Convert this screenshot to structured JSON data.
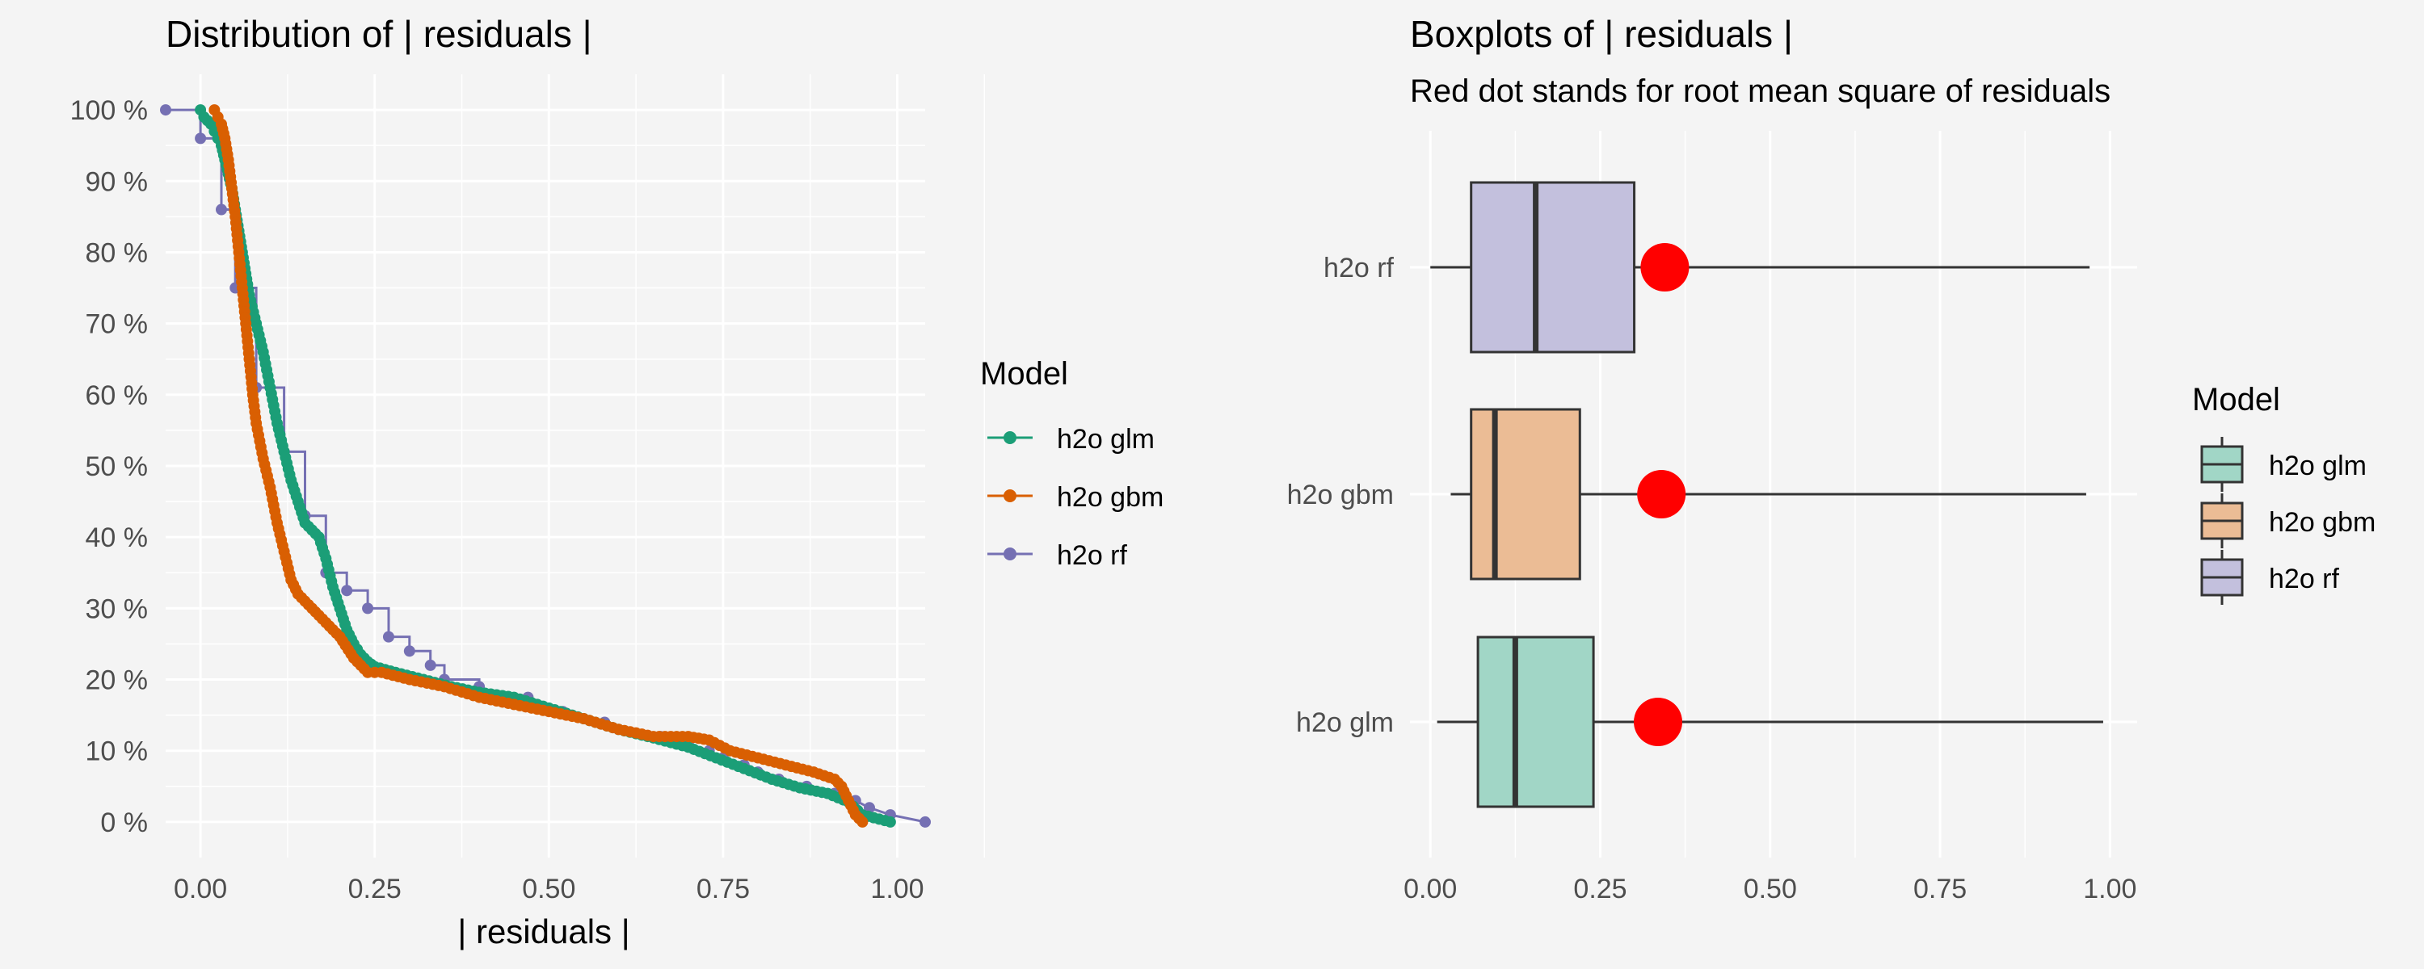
{
  "chart_data": [
    {
      "type": "line",
      "title": "Distribution of | residuals |",
      "xlabel": "| residuals |",
      "ylabel": "",
      "xlim": [
        -0.05,
        1.04
      ],
      "ylim": [
        -0.05,
        1.05
      ],
      "x_ticks": [
        "0.00",
        "0.25",
        "0.50",
        "0.75",
        "1.00"
      ],
      "y_ticks": [
        "0 %",
        "10 %",
        "20 %",
        "30 %",
        "40 %",
        "50 %",
        "60 %",
        "70 %",
        "80 %",
        "90 %",
        "100 %"
      ],
      "grid": true,
      "legend_title": "Model",
      "legend_position": "right",
      "series": [
        {
          "name": "h2o glm",
          "color": "#1b9e77",
          "points": [
            [
              0.0,
              1.0
            ],
            [
              0.005,
              0.99
            ],
            [
              0.01,
              0.985
            ],
            [
              0.015,
              0.98
            ],
            [
              0.02,
              0.97
            ],
            [
              0.025,
              0.96
            ],
            [
              0.03,
              0.95
            ],
            [
              0.035,
              0.93
            ],
            [
              0.04,
              0.91
            ],
            [
              0.045,
              0.89
            ],
            [
              0.05,
              0.86
            ],
            [
              0.055,
              0.83
            ],
            [
              0.06,
              0.8
            ],
            [
              0.065,
              0.77
            ],
            [
              0.07,
              0.74
            ],
            [
              0.08,
              0.7
            ],
            [
              0.09,
              0.66
            ],
            [
              0.1,
              0.61
            ],
            [
              0.11,
              0.56
            ],
            [
              0.12,
              0.52
            ],
            [
              0.13,
              0.48
            ],
            [
              0.14,
              0.45
            ],
            [
              0.15,
              0.42
            ],
            [
              0.16,
              0.41
            ],
            [
              0.17,
              0.4
            ],
            [
              0.18,
              0.37
            ],
            [
              0.19,
              0.33
            ],
            [
              0.2,
              0.3
            ],
            [
              0.21,
              0.27
            ],
            [
              0.22,
              0.25
            ],
            [
              0.23,
              0.235
            ],
            [
              0.24,
              0.225
            ],
            [
              0.25,
              0.218
            ],
            [
              0.28,
              0.21
            ],
            [
              0.32,
              0.2
            ],
            [
              0.36,
              0.19
            ],
            [
              0.4,
              0.182
            ],
            [
              0.45,
              0.175
            ],
            [
              0.5,
              0.16
            ],
            [
              0.55,
              0.145
            ],
            [
              0.6,
              0.13
            ],
            [
              0.65,
              0.118
            ],
            [
              0.7,
              0.105
            ],
            [
              0.74,
              0.09
            ],
            [
              0.78,
              0.075
            ],
            [
              0.82,
              0.06
            ],
            [
              0.86,
              0.048
            ],
            [
              0.9,
              0.04
            ],
            [
              0.93,
              0.028
            ],
            [
              0.95,
              0.01
            ],
            [
              0.99,
              0.0
            ]
          ]
        },
        {
          "name": "h2o gbm",
          "color": "#d95f02",
          "points": [
            [
              0.02,
              1.0
            ],
            [
              0.025,
              0.99
            ],
            [
              0.03,
              0.98
            ],
            [
              0.035,
              0.96
            ],
            [
              0.04,
              0.93
            ],
            [
              0.045,
              0.89
            ],
            [
              0.05,
              0.85
            ],
            [
              0.055,
              0.8
            ],
            [
              0.06,
              0.75
            ],
            [
              0.065,
              0.7
            ],
            [
              0.07,
              0.65
            ],
            [
              0.075,
              0.6
            ],
            [
              0.08,
              0.56
            ],
            [
              0.09,
              0.51
            ],
            [
              0.1,
              0.47
            ],
            [
              0.11,
              0.42
            ],
            [
              0.12,
              0.38
            ],
            [
              0.13,
              0.34
            ],
            [
              0.14,
              0.32
            ],
            [
              0.16,
              0.3
            ],
            [
              0.18,
              0.28
            ],
            [
              0.2,
              0.26
            ],
            [
              0.22,
              0.23
            ],
            [
              0.24,
              0.21
            ],
            [
              0.26,
              0.21
            ],
            [
              0.3,
              0.2
            ],
            [
              0.35,
              0.19
            ],
            [
              0.4,
              0.175
            ],
            [
              0.45,
              0.165
            ],
            [
              0.5,
              0.155
            ],
            [
              0.55,
              0.145
            ],
            [
              0.6,
              0.13
            ],
            [
              0.65,
              0.12
            ],
            [
              0.7,
              0.12
            ],
            [
              0.73,
              0.115
            ],
            [
              0.76,
              0.1
            ],
            [
              0.8,
              0.09
            ],
            [
              0.84,
              0.08
            ],
            [
              0.88,
              0.07
            ],
            [
              0.91,
              0.06
            ],
            [
              0.92,
              0.05
            ],
            [
              0.93,
              0.03
            ],
            [
              0.94,
              0.01
            ],
            [
              0.95,
              0.0
            ]
          ]
        },
        {
          "name": "h2o rf",
          "color": "#7570b3",
          "points": [
            [
              -0.05,
              1.0
            ],
            [
              0.0,
              1.0
            ],
            [
              0.0,
              0.96
            ],
            [
              0.03,
              0.96
            ],
            [
              0.03,
              0.86
            ],
            [
              0.05,
              0.86
            ],
            [
              0.05,
              0.75
            ],
            [
              0.08,
              0.75
            ],
            [
              0.08,
              0.61
            ],
            [
              0.12,
              0.61
            ],
            [
              0.12,
              0.52
            ],
            [
              0.15,
              0.52
            ],
            [
              0.15,
              0.43
            ],
            [
              0.18,
              0.43
            ],
            [
              0.18,
              0.35
            ],
            [
              0.21,
              0.35
            ],
            [
              0.21,
              0.325
            ],
            [
              0.24,
              0.325
            ],
            [
              0.24,
              0.3
            ],
            [
              0.27,
              0.3
            ],
            [
              0.27,
              0.26
            ],
            [
              0.3,
              0.26
            ],
            [
              0.3,
              0.24
            ],
            [
              0.33,
              0.24
            ],
            [
              0.33,
              0.22
            ],
            [
              0.35,
              0.22
            ],
            [
              0.35,
              0.2
            ],
            [
              0.4,
              0.2
            ],
            [
              0.4,
              0.19
            ],
            [
              0.42,
              0.18
            ],
            [
              0.47,
              0.175
            ],
            [
              0.5,
              0.165
            ],
            [
              0.52,
              0.155
            ],
            [
              0.55,
              0.145
            ],
            [
              0.58,
              0.14
            ],
            [
              0.62,
              0.13
            ],
            [
              0.66,
              0.12
            ],
            [
              0.7,
              0.11
            ],
            [
              0.73,
              0.1
            ],
            [
              0.75,
              0.09
            ],
            [
              0.78,
              0.08
            ],
            [
              0.8,
              0.07
            ],
            [
              0.83,
              0.06
            ],
            [
              0.87,
              0.05
            ],
            [
              0.91,
              0.04
            ],
            [
              0.94,
              0.03
            ],
            [
              0.96,
              0.02
            ],
            [
              0.99,
              0.01
            ],
            [
              1.04,
              0.0
            ]
          ]
        }
      ]
    },
    {
      "type": "boxplot",
      "title": "Boxplots of | residuals |",
      "subtitle": "Red dot stands for root mean square of residuals",
      "xlabel": "",
      "ylabel": "",
      "xlim": [
        -0.03,
        1.04
      ],
      "x_ticks": [
        "0.00",
        "0.25",
        "0.50",
        "0.75",
        "1.00"
      ],
      "categories": [
        "h2o glm",
        "h2o gbm",
        "h2o rf"
      ],
      "grid": true,
      "legend_title": "Model",
      "legend_position": "right",
      "series": [
        {
          "name": "h2o glm",
          "color": "#a1d6c6",
          "min": 0.01,
          "q1": 0.07,
          "median": 0.125,
          "q3": 0.24,
          "max": 0.99,
          "rmse": 0.335
        },
        {
          "name": "h2o gbm",
          "color": "#ebbc95",
          "min": 0.03,
          "q1": 0.06,
          "median": 0.095,
          "q3": 0.22,
          "max": 0.965,
          "rmse": 0.34
        },
        {
          "name": "h2o rf",
          "color": "#c3c0dd",
          "min": 0.0,
          "q1": 0.06,
          "median": 0.155,
          "q3": 0.3,
          "max": 0.97,
          "rmse": 0.345
        }
      ],
      "rmse_marker_color": "#ff0000"
    }
  ]
}
